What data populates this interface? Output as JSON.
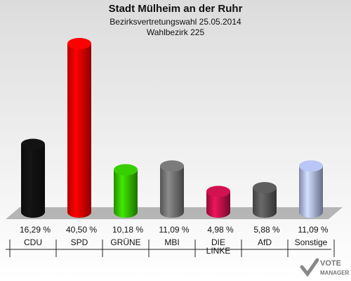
{
  "chart_data": {
    "type": "bar",
    "title": "Stadt Mülheim an der Ruhr",
    "subtitle": "Bezirksvertretungswahl 25.05.2014",
    "subtitle2": "Wahlbezirk 225",
    "categories": [
      "CDU",
      "SPD",
      "GRÜNE",
      "MBI",
      "DIE LINKE",
      "AfD",
      "Sonstige"
    ],
    "values": [
      16.29,
      40.5,
      10.18,
      11.09,
      4.98,
      5.88,
      11.09
    ],
    "value_labels": [
      "16,29 %",
      "40,50 %",
      "10,18 %",
      "11,09 %",
      "4,98 %",
      "5,88 %",
      "11,09 %"
    ],
    "colors": [
      "#111111",
      "#ee0000",
      "#33bb00",
      "#707070",
      "#c0104a",
      "#555555",
      "#a9b4e0"
    ],
    "ylim": [
      0,
      42
    ],
    "grid": false,
    "legend": "none"
  },
  "logo": {
    "line1": "VOTE",
    "line2": "MANAGER"
  }
}
